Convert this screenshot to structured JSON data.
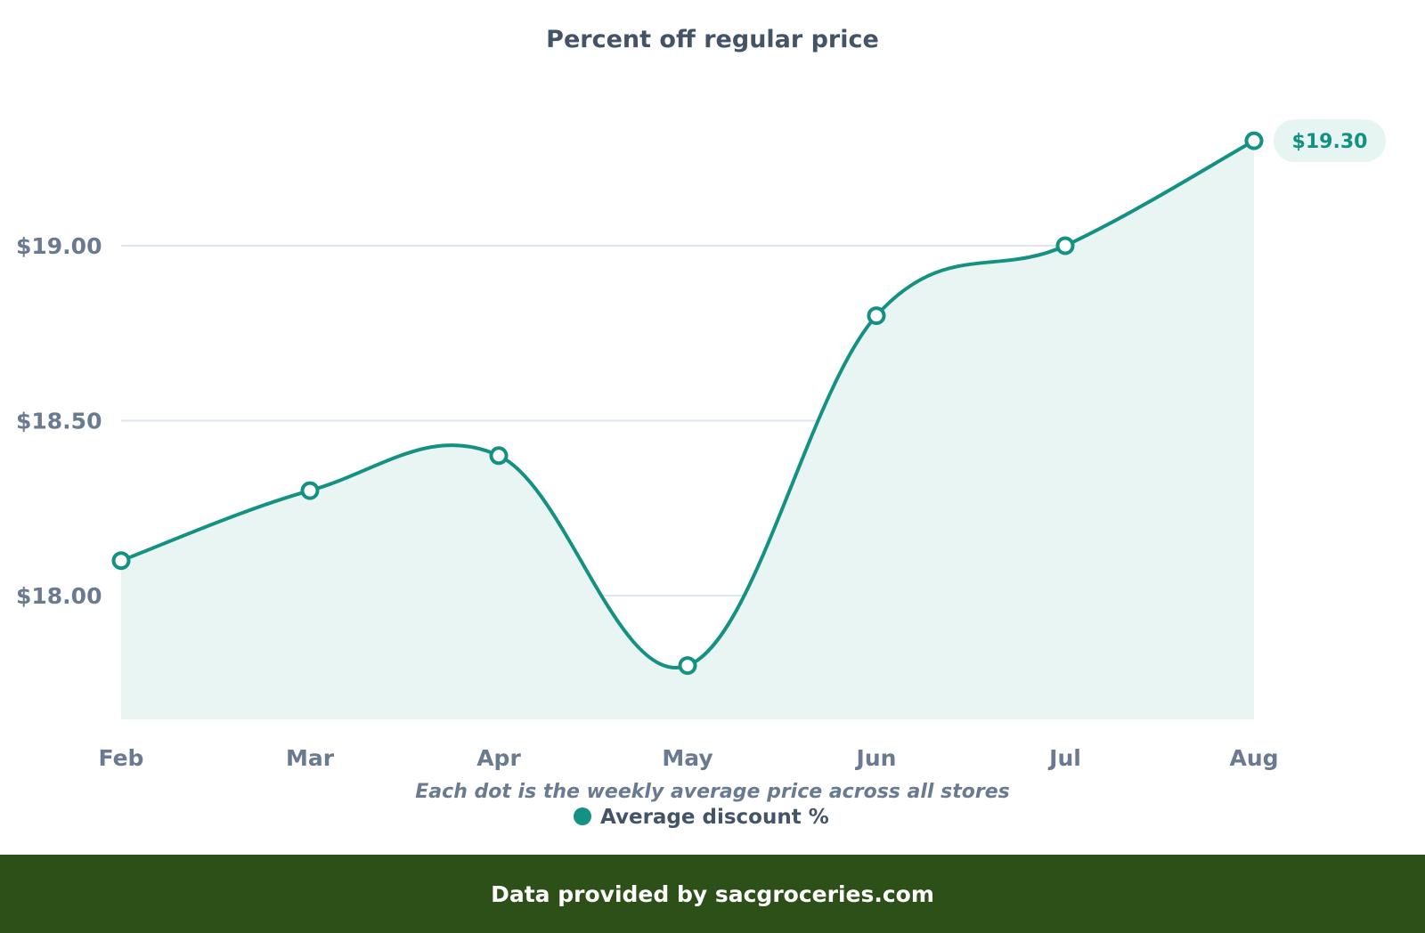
{
  "chart_data": {
    "type": "line",
    "title": "Percent off regular price",
    "categories": [
      "Feb",
      "Mar",
      "Apr",
      "May",
      "Jun",
      "Jul",
      "Aug"
    ],
    "x": [
      "Feb",
      "Mar",
      "Apr",
      "May",
      "Jun",
      "Jul",
      "Aug"
    ],
    "series": [
      {
        "name": "Average discount %",
        "values": [
          18.1,
          18.3,
          18.4,
          17.8,
          18.8,
          19.0,
          19.3
        ],
        "color": "#149183"
      }
    ],
    "y_ticks": [
      "$18.00",
      "$18.50",
      "$19.00"
    ],
    "y_tick_values": [
      18.0,
      18.5,
      19.0
    ],
    "ylim": [
      17.65,
      19.56
    ],
    "last_value_label": "$19.30",
    "note": "Each dot is the weekly average price across all stores",
    "grid": true,
    "legend": "bottom-center",
    "area_fill_color": "#e9f5f3"
  },
  "footer": {
    "text": "Data provided by sacgroceries.com"
  }
}
